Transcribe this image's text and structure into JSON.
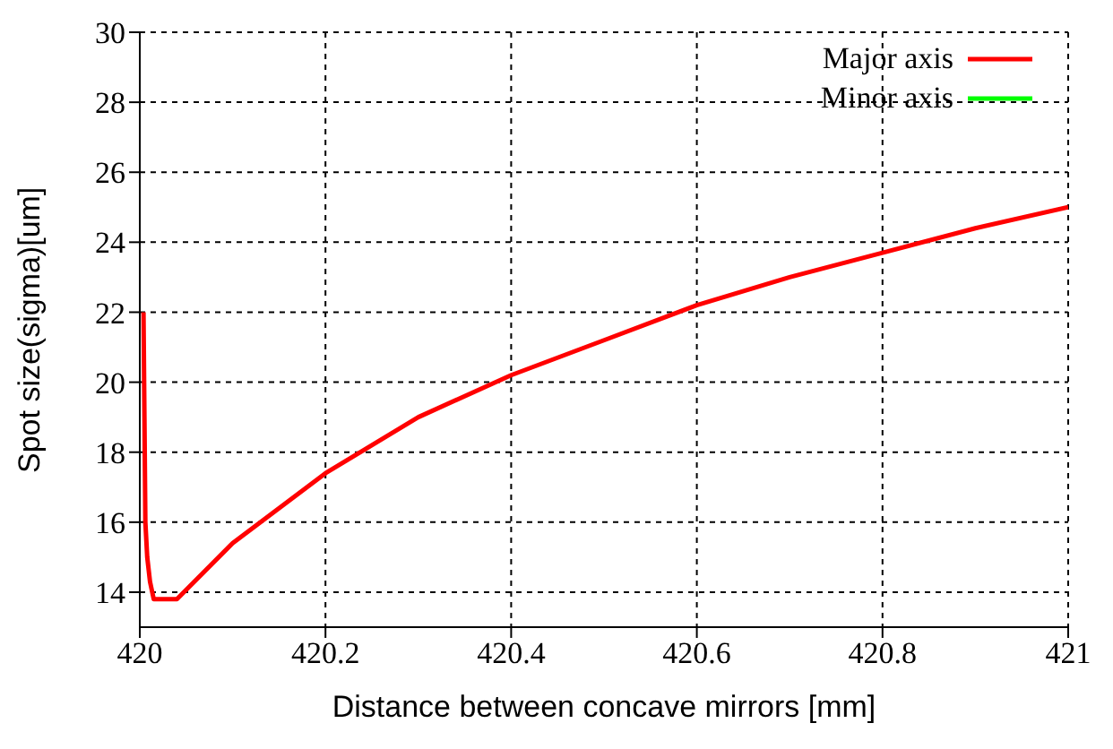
{
  "chart_data": {
    "type": "line",
    "xlabel": "Distance between concave mirrors [mm]",
    "ylabel": "Spot size(sigma)[um]",
    "x": [
      420.004,
      420.005,
      420.006,
      420.008,
      420.011,
      420.015,
      420.04,
      420.1,
      420.2,
      420.3,
      420.4,
      420.5,
      420.6,
      420.7,
      420.8,
      420.9,
      421
    ],
    "series": [
      {
        "name": "Major axis",
        "color": "#ff0000",
        "values": [
          22,
          19,
          16,
          15,
          14.3,
          13.8,
          13.8,
          15.4,
          17.4,
          19.0,
          20.2,
          21.2,
          22.2,
          23.0,
          23.7,
          24.4,
          25.0
        ]
      },
      {
        "name": "Minor axis",
        "color": "#00ff00",
        "values": [
          null,
          null,
          null,
          null,
          null,
          null,
          null,
          null,
          null,
          null,
          null,
          null,
          null,
          null,
          null,
          null,
          null
        ]
      }
    ],
    "xlim": [
      420,
      421
    ],
    "xticks": [
      420,
      420.2,
      420.4,
      420.6,
      420.8,
      421
    ],
    "ylim": [
      13,
      30
    ],
    "yticks": [
      14,
      16,
      18,
      20,
      22,
      24,
      26,
      28,
      30
    ],
    "grid": true,
    "legend": "top right",
    "line_style": "solid",
    "marker": "none"
  }
}
